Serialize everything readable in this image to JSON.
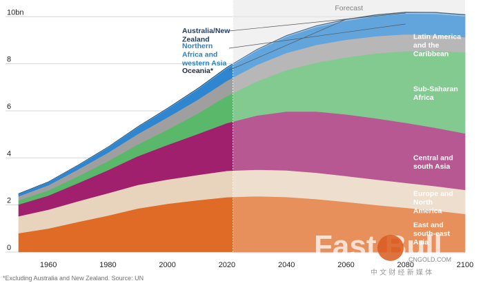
{
  "chart_data": {
    "type": "area",
    "stacked": true,
    "title": "",
    "xlabel": "",
    "ylabel": "",
    "xlim": [
      1950,
      2100
    ],
    "ylim": [
      0,
      10.3
    ],
    "xticks": [
      1960,
      1980,
      2000,
      2020,
      2040,
      2060,
      2080,
      2100
    ],
    "yticks": [
      0,
      2,
      4,
      6,
      8,
      10
    ],
    "ytick_labels": [
      "0",
      "2",
      "4",
      "6",
      "8",
      "10bn"
    ],
    "forecast_start": 2022,
    "forecast_label": "Forecast",
    "x": [
      1950,
      1960,
      1970,
      1980,
      1990,
      2000,
      2010,
      2020,
      2030,
      2040,
      2050,
      2060,
      2070,
      2080,
      2090,
      2100
    ],
    "series": [
      {
        "name": "East and south-east Asia",
        "label": "East and south-east Asia",
        "color": "#e06b26",
        "values": [
          0.8,
          1.0,
          1.28,
          1.55,
          1.85,
          2.05,
          2.2,
          2.33,
          2.37,
          2.34,
          2.25,
          2.13,
          2.0,
          1.88,
          1.76,
          1.62
        ]
      },
      {
        "name": "Europe and North America",
        "label": "Europe and North America",
        "color": "#e8d3bc",
        "values": [
          0.72,
          0.8,
          0.88,
          0.95,
          1.0,
          1.03,
          1.07,
          1.12,
          1.13,
          1.13,
          1.12,
          1.1,
          1.08,
          1.06,
          1.04,
          1.02
        ]
      },
      {
        "name": "Central and south Asia",
        "label": "Central and south Asia",
        "color": "#a0206e",
        "values": [
          0.5,
          0.6,
          0.77,
          0.98,
          1.22,
          1.47,
          1.74,
          2.03,
          2.3,
          2.5,
          2.6,
          2.62,
          2.6,
          2.55,
          2.48,
          2.4
        ]
      },
      {
        "name": "Sub-Saharan Africa",
        "label": "Sub-Saharan Africa",
        "color": "#59b86a",
        "values": [
          0.18,
          0.22,
          0.29,
          0.38,
          0.5,
          0.65,
          0.86,
          1.15,
          1.45,
          1.76,
          2.08,
          2.42,
          2.76,
          3.05,
          3.27,
          3.44
        ]
      },
      {
        "name": "Latin America and the Caribbean",
        "label": "Latin America and the Caribbean",
        "color": "#9f9f9f",
        "values": [
          0.17,
          0.22,
          0.29,
          0.36,
          0.44,
          0.52,
          0.59,
          0.65,
          0.7,
          0.73,
          0.75,
          0.75,
          0.73,
          0.71,
          0.68,
          0.65
        ]
      },
      {
        "name": "Northern Africa and western Asia",
        "label": "Northern Africa and western Asia",
        "color": "#2e86d1",
        "values": [
          0.1,
          0.13,
          0.17,
          0.22,
          0.29,
          0.36,
          0.44,
          0.53,
          0.61,
          0.69,
          0.76,
          0.81,
          0.85,
          0.88,
          0.89,
          0.89
        ]
      },
      {
        "name": "Australia/New Zealand",
        "label": "Australia/New Zealand",
        "color": "#7fb6e6",
        "values": [
          0.01,
          0.012,
          0.015,
          0.018,
          0.02,
          0.023,
          0.027,
          0.031,
          0.035,
          0.038,
          0.041,
          0.043,
          0.045,
          0.047,
          0.048,
          0.049
        ]
      },
      {
        "name": "Oceania*",
        "label": "Oceania*",
        "color": "#113a5c",
        "values": [
          0.002,
          0.003,
          0.004,
          0.005,
          0.006,
          0.008,
          0.01,
          0.013,
          0.015,
          0.017,
          0.019,
          0.021,
          0.022,
          0.023,
          0.024,
          0.024
        ]
      }
    ],
    "left_labels": [
      {
        "series": "Australia/New Zealand",
        "lines": [
          "Australia/New",
          "Zealand"
        ],
        "color": "#1f3f66"
      },
      {
        "series": "Northern Africa and western Asia",
        "lines": [
          "Northern",
          "Africa and",
          "western Asia"
        ],
        "color": "#2a82c6"
      },
      {
        "series": "Oceania*",
        "lines": [
          "Oceania*"
        ],
        "color": "#1c2b3f"
      }
    ],
    "right_labels": [
      {
        "series": "Latin America and the Caribbean",
        "lines": [
          "Latin America",
          "and the",
          "Caribbean"
        ],
        "color": "#ffffff"
      },
      {
        "series": "Sub-Saharan Africa",
        "lines": [
          "Sub-Saharan",
          "Africa"
        ],
        "color": "#ffffff"
      },
      {
        "series": "Central and south Asia",
        "lines": [
          "Central and",
          "south Asia"
        ],
        "color": "#ffffff"
      },
      {
        "series": "Europe and North America",
        "lines": [
          "Europe and",
          "North",
          "America"
        ],
        "color": "#ffffff"
      },
      {
        "series": "East and south-east Asia",
        "lines": [
          "East and",
          "south-east",
          "Asia"
        ],
        "color": "#ffffff"
      }
    ],
    "footnote": "*Excluding Australia and New Zealand. Source: UN"
  },
  "watermark": {
    "text": "Fast Bull",
    "site_text": "CNGOLD.COM",
    "cn_text": "中 文 财 经 新 媒 体",
    "logo_color": "#d95b1f"
  }
}
